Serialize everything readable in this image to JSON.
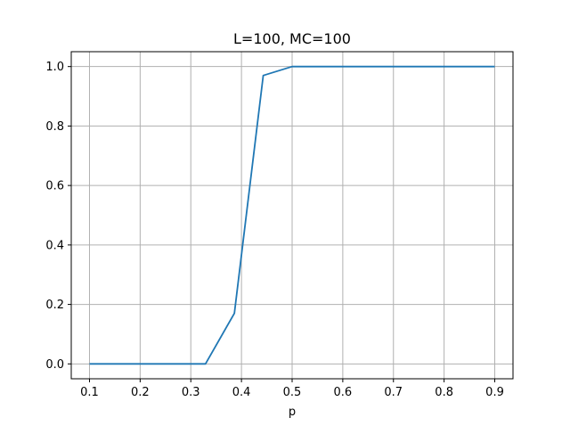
{
  "chart_data": {
    "type": "line",
    "title": "L=100, MC=100",
    "xlabel": "p",
    "ylabel": "",
    "xlim": [
      0.064,
      0.936
    ],
    "ylim": [
      -0.05,
      1.05
    ],
    "xticks": [
      0.1,
      0.2,
      0.3,
      0.4,
      0.5,
      0.6,
      0.7,
      0.8,
      0.9
    ],
    "xtick_labels": [
      "0.1",
      "0.2",
      "0.3",
      "0.4",
      "0.5",
      "0.6",
      "0.7",
      "0.8",
      "0.9"
    ],
    "yticks": [
      0.0,
      0.2,
      0.4,
      0.6,
      0.8,
      1.0
    ],
    "ytick_labels": [
      "0.0",
      "0.2",
      "0.4",
      "0.6",
      "0.8",
      "1.0"
    ],
    "grid": true,
    "series": [
      {
        "color": "#1f77b4",
        "x": [
          0.1,
          0.157,
          0.214,
          0.271,
          0.329,
          0.386,
          0.443,
          0.5,
          0.557,
          0.614,
          0.671,
          0.729,
          0.786,
          0.843,
          0.9
        ],
        "y": [
          0.0,
          0.0,
          0.0,
          0.0,
          0.0,
          0.17,
          0.97,
          1.0,
          1.0,
          1.0,
          1.0,
          1.0,
          1.0,
          1.0,
          1.0
        ]
      }
    ]
  }
}
